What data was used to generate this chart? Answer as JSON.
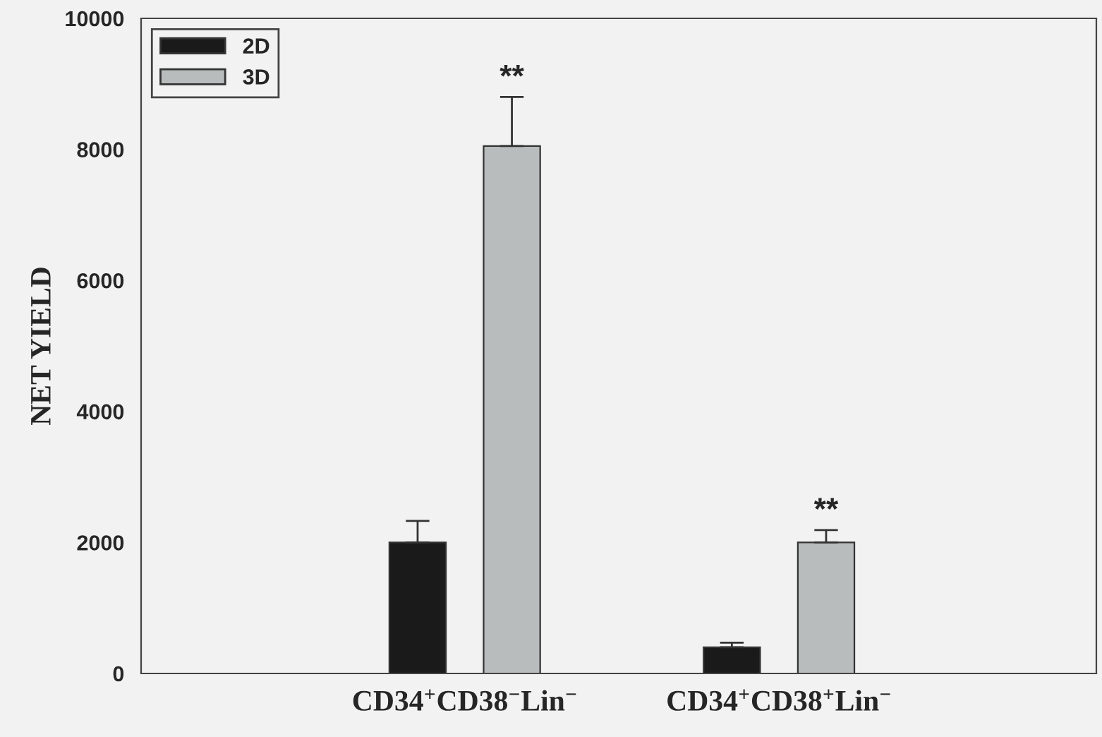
{
  "chart_data": {
    "type": "bar",
    "ylabel": "NET YIELD",
    "categories": [
      "CD34$^{+}$CD38$^{−}$Lin$^{−}$",
      "CD34$^{+}$CD38$^{+}$Lin$^{−}$"
    ],
    "series": [
      {
        "name": "2D",
        "color": "#1a1a1a",
        "values": [
          2000,
          400
        ],
        "errors": [
          330,
          70
        ]
      },
      {
        "name": "3D",
        "color": "#b8bcbc",
        "values": [
          8050,
          2000
        ],
        "errors": [
          750,
          190
        ]
      }
    ],
    "ylim": [
      0,
      10000
    ],
    "yticks": [
      0,
      2000,
      4000,
      6000,
      8000,
      10000
    ],
    "annotations": [
      "**",
      "**"
    ],
    "legend": "top left",
    "grid": false
  }
}
